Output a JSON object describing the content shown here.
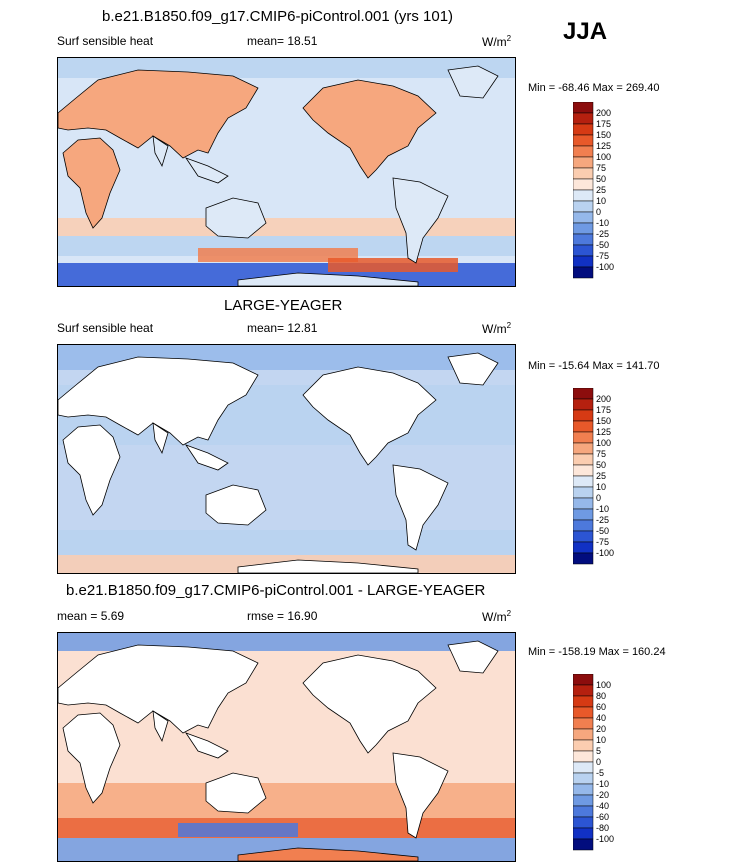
{
  "header": {
    "season": "JJA"
  },
  "chart_data": [
    {
      "type": "heatmap",
      "title": "b.e21.B1850.f09_g17.CMIP6-piControl.001 (yrs 101)",
      "left_label": "Surf sensible heat",
      "stat_label": "mean=",
      "stat_value": "18.51",
      "units_base": "W/m",
      "units_exp": "2",
      "minmax": "Min = -68.46 Max = 269.40",
      "min": -68.46,
      "max": 269.4,
      "colorbar_levels": [
        "200",
        "175",
        "150",
        "125",
        "100",
        "75",
        "50",
        "25",
        "10",
        "0",
        "-10",
        "-25",
        "-50",
        "-75",
        "-100"
      ],
      "colorbar_colors": [
        "#8c0d0d",
        "#b5200f",
        "#d63a14",
        "#e8592a",
        "#f17f50",
        "#f6a77e",
        "#fbcdb0",
        "#fde7da",
        "#dde9f7",
        "#b9d2f0",
        "#95b8ea",
        "#6f9ae3",
        "#4d79dc",
        "#2c55d3",
        "#1131c4",
        "#020d7e"
      ],
      "ocean": "#d8e6f7"
    },
    {
      "type": "heatmap",
      "title": "LARGE-YEAGER",
      "left_label": "Surf sensible heat",
      "stat_label": "mean=",
      "stat_value": "12.81",
      "units_base": "W/m",
      "units_exp": "2",
      "minmax": "Min = -15.64 Max = 141.70",
      "min": -15.64,
      "max": 141.7,
      "colorbar_levels": [
        "200",
        "175",
        "150",
        "125",
        "100",
        "75",
        "50",
        "25",
        "10",
        "0",
        "-10",
        "-25",
        "-50",
        "-75",
        "-100"
      ],
      "colorbar_colors": [
        "#8c0d0d",
        "#b5200f",
        "#d63a14",
        "#e8592a",
        "#f17f50",
        "#f6a77e",
        "#fbcdb0",
        "#fde7da",
        "#dde9f7",
        "#b9d2f0",
        "#95b8ea",
        "#6f9ae3",
        "#4d79dc",
        "#2c55d3",
        "#1131c4",
        "#020d7e"
      ],
      "ocean": "#c3d6f1"
    },
    {
      "type": "heatmap",
      "title": "b.e21.B1850.f09_g17.CMIP6-piControl.001 - LARGE-YEAGER",
      "left_label": "mean =   5.69",
      "stat_label": "rmse =",
      "stat_value": "16.90",
      "units_base": "W/m",
      "units_exp": "2",
      "minmax": "Min = -158.19 Max = 160.24",
      "min": -158.19,
      "max": 160.24,
      "colorbar_levels": [
        "100",
        "80",
        "60",
        "40",
        "20",
        "10",
        "5",
        "0",
        "-5",
        "-10",
        "-20",
        "-40",
        "-60",
        "-80",
        "-100"
      ],
      "colorbar_colors": [
        "#8c0d0d",
        "#b5200f",
        "#d63a14",
        "#e8592a",
        "#f17f50",
        "#f6a77e",
        "#fbcdb0",
        "#fde7da",
        "#dde9f7",
        "#b9d2f0",
        "#95b8ea",
        "#6f9ae3",
        "#4d79dc",
        "#2c55d3",
        "#1131c4",
        "#020d7e"
      ],
      "ocean": "#fbe0d2"
    }
  ]
}
